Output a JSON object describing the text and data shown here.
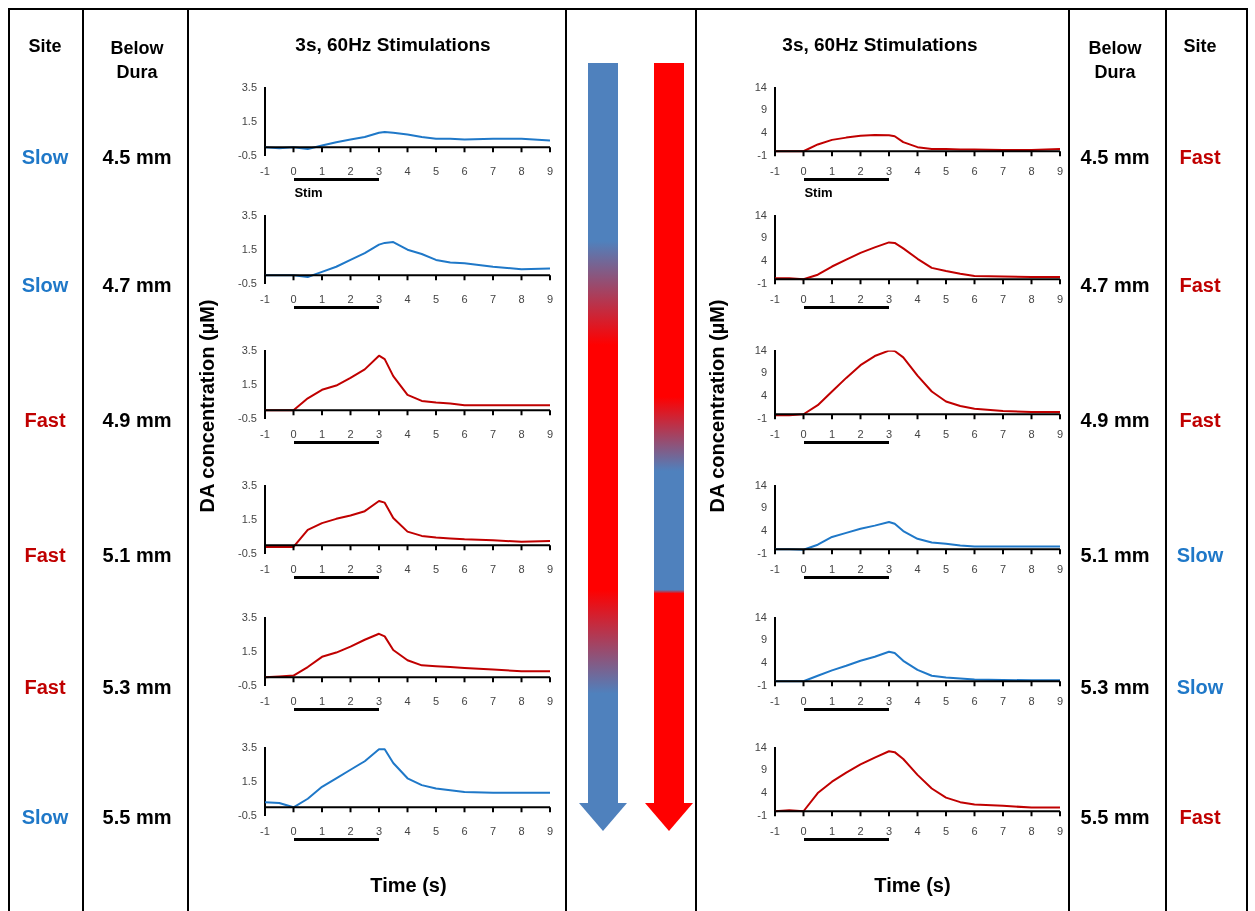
{
  "chart_data": [
    {
      "type": "line",
      "title": "3s, 60Hz Stimulations",
      "annotations": [
        "Slow",
        "4.5 mm",
        "Stim",
        "Site",
        "Below Dura"
      ],
      "xlim": [
        -1,
        9
      ],
      "xticks": [
        -1,
        0,
        1,
        2,
        3,
        4,
        5,
        6,
        7,
        8,
        9
      ],
      "ylim": [
        -0.5,
        3.5
      ],
      "yticks": [
        -0.5,
        1.5,
        3.5
      ],
      "x": [
        -1,
        -0.5,
        0,
        0.5,
        1,
        1.5,
        2,
        2.5,
        3,
        3.2,
        3.5,
        4,
        4.5,
        5,
        5.5,
        6,
        7,
        8,
        9
      ],
      "series": [
        {
          "color": "#1f78c8",
          "values": [
            0,
            -0.05,
            0,
            -0.1,
            0.1,
            0.3,
            0.45,
            0.6,
            0.85,
            0.9,
            0.85,
            0.75,
            0.6,
            0.5,
            0.5,
            0.45,
            0.5,
            0.5,
            0.4
          ]
        }
      ]
    },
    {
      "type": "line",
      "annotations": [
        "Slow",
        "4.7 mm"
      ],
      "xlim": [
        -1,
        9
      ],
      "xticks": [
        -1,
        0,
        1,
        2,
        3,
        4,
        5,
        6,
        7,
        8,
        9
      ],
      "ylim": [
        -0.5,
        3.5
      ],
      "yticks": [
        -0.5,
        1.5,
        3.5
      ],
      "x": [
        -1,
        -0.5,
        0,
        0.5,
        1,
        1.5,
        2,
        2.5,
        3,
        3.2,
        3.5,
        4,
        4.5,
        5,
        5.5,
        6,
        7,
        8,
        9
      ],
      "series": [
        {
          "color": "#1f78c8",
          "values": [
            0,
            0,
            0,
            -0.1,
            0.2,
            0.5,
            0.9,
            1.3,
            1.8,
            1.9,
            1.95,
            1.5,
            1.25,
            0.9,
            0.75,
            0.7,
            0.5,
            0.35,
            0.4
          ]
        }
      ]
    },
    {
      "type": "line",
      "ylabel": "DA concentration (µM)",
      "annotations": [
        "Fast",
        "4.9 mm"
      ],
      "xlim": [
        -1,
        9
      ],
      "xticks": [
        -1,
        0,
        1,
        2,
        3,
        4,
        5,
        6,
        7,
        8,
        9
      ],
      "ylim": [
        -0.5,
        3.5
      ],
      "yticks": [
        -0.5,
        1.5,
        3.5
      ],
      "x": [
        -1,
        -0.5,
        0,
        0.5,
        1,
        1.5,
        2,
        2.5,
        3,
        3.2,
        3.5,
        4,
        4.5,
        5,
        5.5,
        6,
        7,
        8,
        9
      ],
      "series": [
        {
          "color": "#c00000",
          "values": [
            0,
            0,
            0,
            0.7,
            1.2,
            1.45,
            1.9,
            2.4,
            3.2,
            3.0,
            2.0,
            0.9,
            0.55,
            0.45,
            0.4,
            0.3,
            0.3,
            0.3,
            0.3
          ]
        }
      ]
    },
    {
      "type": "line",
      "annotations": [
        "Fast",
        "5.1 mm"
      ],
      "xlim": [
        -1,
        9
      ],
      "xticks": [
        -1,
        0,
        1,
        2,
        3,
        4,
        5,
        6,
        7,
        8,
        9
      ],
      "ylim": [
        -0.5,
        3.5
      ],
      "yticks": [
        -0.5,
        1.5,
        3.5
      ],
      "x": [
        -1,
        -0.5,
        0,
        0.5,
        1,
        1.5,
        2,
        2.5,
        3,
        3.2,
        3.5,
        4,
        4.5,
        5,
        5.5,
        6,
        7,
        8,
        9
      ],
      "series": [
        {
          "color": "#c00000",
          "values": [
            -0.1,
            -0.1,
            -0.1,
            0.9,
            1.3,
            1.55,
            1.75,
            2.0,
            2.6,
            2.5,
            1.6,
            0.8,
            0.55,
            0.45,
            0.4,
            0.35,
            0.3,
            0.2,
            0.25
          ]
        }
      ]
    },
    {
      "type": "line",
      "annotations": [
        "Fast",
        "5.3 mm"
      ],
      "xlim": [
        -1,
        9
      ],
      "xticks": [
        -1,
        0,
        1,
        2,
        3,
        4,
        5,
        6,
        7,
        8,
        9
      ],
      "ylim": [
        -0.5,
        3.5
      ],
      "yticks": [
        -0.5,
        1.5,
        3.5
      ],
      "x": [
        -1,
        -0.5,
        0,
        0.5,
        1,
        1.5,
        2,
        2.5,
        3,
        3.2,
        3.5,
        4,
        4.5,
        5,
        5.5,
        6,
        7,
        8,
        9
      ],
      "series": [
        {
          "color": "#c00000",
          "values": [
            0,
            0.05,
            0.1,
            0.6,
            1.2,
            1.45,
            1.8,
            2.2,
            2.55,
            2.4,
            1.6,
            1.0,
            0.7,
            0.65,
            0.6,
            0.55,
            0.45,
            0.35,
            0.35
          ]
        }
      ]
    },
    {
      "type": "line",
      "xlabel": "Time (s)",
      "annotations": [
        "Slow",
        "5.5 mm"
      ],
      "xlim": [
        -1,
        9
      ],
      "xticks": [
        -1,
        0,
        1,
        2,
        3,
        4,
        5,
        6,
        7,
        8,
        9
      ],
      "ylim": [
        -0.5,
        3.5
      ],
      "yticks": [
        -0.5,
        1.5,
        3.5
      ],
      "x": [
        -1,
        -0.5,
        0,
        0.5,
        1,
        1.5,
        2,
        2.5,
        3,
        3.2,
        3.5,
        4,
        4.5,
        5,
        5.5,
        6,
        7,
        8,
        9
      ],
      "series": [
        {
          "color": "#1f78c8",
          "values": [
            0.3,
            0.25,
            0,
            0.5,
            1.2,
            1.7,
            2.2,
            2.7,
            3.4,
            3.4,
            2.6,
            1.7,
            1.3,
            1.1,
            1.0,
            0.9,
            0.85,
            0.85,
            0.85
          ]
        }
      ]
    },
    {
      "type": "line",
      "title": "3s, 60Hz Stimulations",
      "annotations": [
        "Fast",
        "4.5 mm",
        "Stim",
        "Site",
        "Below Dura"
      ],
      "xlim": [
        -1,
        9
      ],
      "xticks": [
        -1,
        0,
        1,
        2,
        3,
        4,
        5,
        6,
        7,
        8,
        9
      ],
      "ylim": [
        -1,
        14
      ],
      "yticks": [
        -1,
        4,
        9,
        14
      ],
      "x": [
        -1,
        -0.5,
        0,
        0.5,
        1,
        1.5,
        2,
        2.5,
        3,
        3.2,
        3.5,
        4,
        4.5,
        5,
        5.5,
        6,
        7,
        8,
        9
      ],
      "series": [
        {
          "color": "#c00000",
          "values": [
            0,
            0,
            0,
            1.5,
            2.5,
            3,
            3.4,
            3.6,
            3.5,
            3.3,
            2,
            0.9,
            0.5,
            0.5,
            0.4,
            0.4,
            0.3,
            0.3,
            0.5
          ]
        }
      ]
    },
    {
      "type": "line",
      "annotations": [
        "Fast",
        "4.7 mm"
      ],
      "xlim": [
        -1,
        9
      ],
      "xticks": [
        -1,
        0,
        1,
        2,
        3,
        4,
        5,
        6,
        7,
        8,
        9
      ],
      "ylim": [
        -1,
        14
      ],
      "yticks": [
        -1,
        4,
        9,
        14
      ],
      "x": [
        -1,
        -0.5,
        0,
        0.5,
        1,
        1.5,
        2,
        2.5,
        3,
        3.2,
        3.5,
        4,
        4.5,
        5,
        5.5,
        6,
        7,
        8,
        9
      ],
      "series": [
        {
          "color": "#c00000",
          "values": [
            0.2,
            0.2,
            0,
            1,
            2.8,
            4.3,
            5.8,
            7,
            8.1,
            8.0,
            6.8,
            4.5,
            2.5,
            1.8,
            1.2,
            0.7,
            0.6,
            0.5,
            0.5
          ]
        }
      ]
    },
    {
      "type": "line",
      "ylabel": "DA concentration (µM)",
      "annotations": [
        "Fast",
        "4.9 mm"
      ],
      "xlim": [
        -1,
        9
      ],
      "xticks": [
        -1,
        0,
        1,
        2,
        3,
        4,
        5,
        6,
        7,
        8,
        9
      ],
      "ylim": [
        -1,
        14
      ],
      "yticks": [
        -1,
        4,
        9,
        14
      ],
      "x": [
        -1,
        -0.5,
        0,
        0.5,
        1,
        1.5,
        2,
        2.5,
        3,
        3.2,
        3.5,
        4,
        4.5,
        5,
        5.5,
        6,
        7,
        8,
        9
      ],
      "series": [
        {
          "color": "#c00000",
          "values": [
            -0.2,
            -0.2,
            0,
            2,
            5,
            8,
            10.8,
            12.8,
            14,
            13.9,
            12.5,
            8.5,
            5,
            2.8,
            1.8,
            1.2,
            0.7,
            0.5,
            0.5
          ]
        }
      ]
    },
    {
      "type": "line",
      "annotations": [
        "Slow",
        "5.1 mm"
      ],
      "xlim": [
        -1,
        9
      ],
      "xticks": [
        -1,
        0,
        1,
        2,
        3,
        4,
        5,
        6,
        7,
        8,
        9
      ],
      "ylim": [
        -1,
        14
      ],
      "yticks": [
        -1,
        4,
        9,
        14
      ],
      "x": [
        -1,
        -0.5,
        0,
        0.5,
        1,
        1.5,
        2,
        2.5,
        3,
        3.2,
        3.5,
        4,
        4.5,
        5,
        5.5,
        6,
        7,
        8,
        9
      ],
      "series": [
        {
          "color": "#1f78c8",
          "values": [
            0,
            0,
            -0.1,
            1,
            2.7,
            3.6,
            4.5,
            5.2,
            6,
            5.6,
            4,
            2.3,
            1.5,
            1.2,
            0.8,
            0.6,
            0.6,
            0.6,
            0.6
          ]
        }
      ]
    },
    {
      "type": "line",
      "annotations": [
        "Slow",
        "5.3 mm"
      ],
      "xlim": [
        -1,
        9
      ],
      "xticks": [
        -1,
        0,
        1,
        2,
        3,
        4,
        5,
        6,
        7,
        8,
        9
      ],
      "ylim": [
        -1,
        14
      ],
      "yticks": [
        -1,
        4,
        9,
        14
      ],
      "x": [
        -1,
        -0.5,
        0,
        0.5,
        1,
        1.5,
        2,
        2.5,
        3,
        3.2,
        3.5,
        4,
        4.5,
        5,
        5.5,
        6,
        7,
        8,
        9
      ],
      "series": [
        {
          "color": "#1f78c8",
          "values": [
            0,
            0,
            0,
            1.2,
            2.4,
            3.4,
            4.5,
            5.4,
            6.5,
            6.2,
            4.5,
            2.5,
            1.2,
            0.8,
            0.6,
            0.4,
            0.3,
            0.2,
            0.2
          ]
        }
      ]
    },
    {
      "type": "line",
      "xlabel": "Time (s)",
      "annotations": [
        "Fast",
        "5.5 mm"
      ],
      "xlim": [
        -1,
        9
      ],
      "xticks": [
        -1,
        0,
        1,
        2,
        3,
        4,
        5,
        6,
        7,
        8,
        9
      ],
      "ylim": [
        -1,
        14
      ],
      "yticks": [
        -1,
        4,
        9,
        14
      ],
      "x": [
        -1,
        -0.5,
        0,
        0.5,
        1,
        1.5,
        2,
        2.5,
        3,
        3.2,
        3.5,
        4,
        4.5,
        5,
        5.5,
        6,
        7,
        8,
        9
      ],
      "series": [
        {
          "color": "#c00000",
          "values": [
            0,
            0.2,
            0,
            4,
            6.5,
            8.5,
            10.3,
            11.8,
            13.2,
            13,
            11.5,
            8,
            5,
            3,
            2,
            1.5,
            1.2,
            0.8,
            0.8
          ]
        }
      ]
    }
  ]
}
